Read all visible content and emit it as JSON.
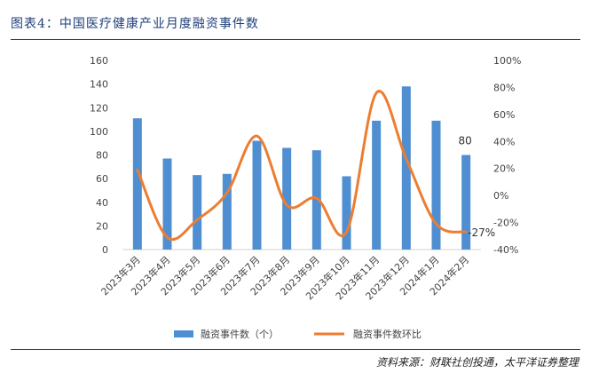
{
  "figure": {
    "title": "图表4：中国医疗健康产业月度融资事件数",
    "source": "资料来源：财联社创投通，太平洋证券整理"
  },
  "chart_data": {
    "type": "bar",
    "categories": [
      "2023年3月",
      "2023年4月",
      "2023年5月",
      "2023年6月",
      "2023年7月",
      "2023年8月",
      "2023年9月",
      "2023年10月",
      "2023年11月",
      "2023年12月",
      "2024年1月",
      "2024年2月"
    ],
    "series": [
      {
        "name": "融资事件数（个）",
        "type": "bar",
        "axis": "left",
        "values": [
          111,
          77,
          63,
          64,
          92,
          86,
          84,
          62,
          109,
          138,
          109,
          80
        ],
        "color": "#4f8fd1"
      },
      {
        "name": "融资事件数环比",
        "type": "line",
        "axis": "right",
        "values": [
          0.19,
          -0.31,
          -0.18,
          0.02,
          0.44,
          -0.07,
          -0.02,
          -0.27,
          0.76,
          0.27,
          -0.21,
          -0.27
        ],
        "color": "#ed7d31"
      }
    ],
    "y_left": {
      "min": 0,
      "max": 160,
      "ticks": [
        "0",
        "20",
        "40",
        "60",
        "80",
        "100",
        "120",
        "140",
        "160"
      ]
    },
    "y_right": {
      "min": -0.4,
      "max": 1.0,
      "ticks": [
        "-40%",
        "-20%",
        "0%",
        "20%",
        "40%",
        "60%",
        "80%",
        "100%"
      ]
    },
    "annotations": {
      "last_bar_label": "80",
      "last_line_label": "-27%"
    },
    "grid": false,
    "legend_position": "bottom"
  }
}
